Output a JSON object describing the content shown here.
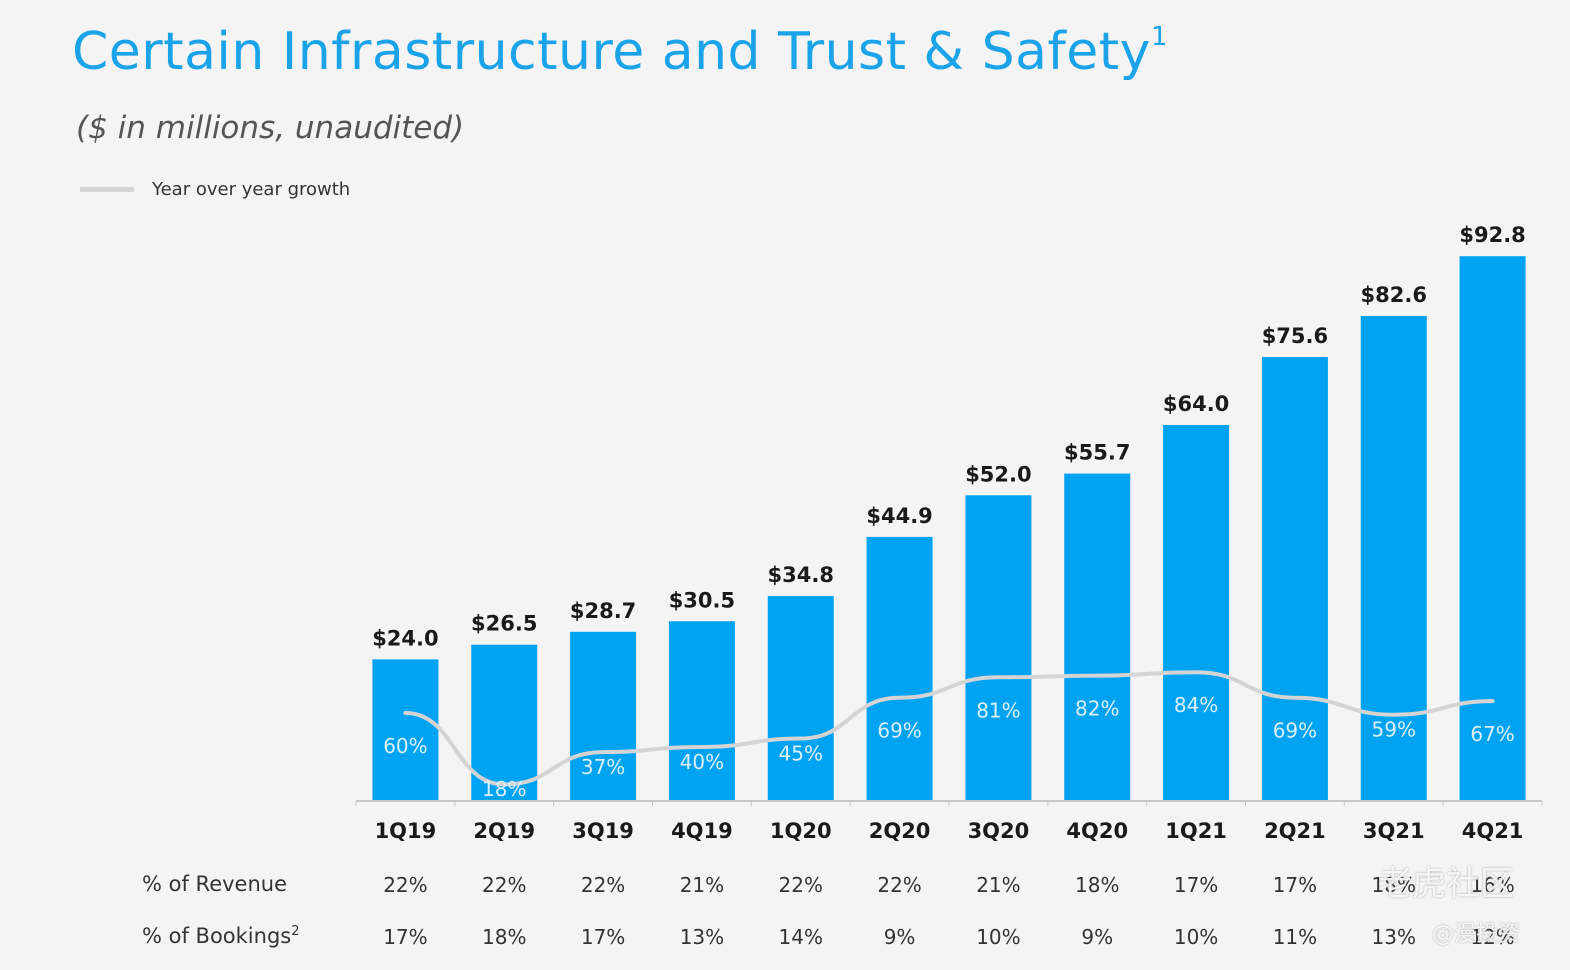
{
  "title": "Certain Infrastructure and Trust & Safety",
  "title_footnote": "1",
  "subtitle": "($ in millions,  unaudited)",
  "legend": {
    "label": "Year over year growth"
  },
  "colors": {
    "bar": "#00a2f2",
    "line": "#d4d4d4",
    "title": "#1aa3e8"
  },
  "chart_data": {
    "type": "bar",
    "categories": [
      "1Q19",
      "2Q19",
      "3Q19",
      "4Q19",
      "1Q20",
      "2Q20",
      "3Q20",
      "4Q20",
      "1Q21",
      "2Q21",
      "3Q21",
      "4Q21"
    ],
    "values": [
      24.0,
      26.5,
      28.7,
      30.5,
      34.8,
      44.9,
      52.0,
      55.7,
      64.0,
      75.6,
      82.6,
      92.8
    ],
    "value_labels": [
      "$24.0",
      "$26.5",
      "$28.7",
      "$30.5",
      "$34.8",
      "$44.9",
      "$52.0",
      "$55.7",
      "$64.0",
      "$75.6",
      "$82.6",
      "$92.8"
    ],
    "growth": [
      60,
      18,
      37,
      40,
      45,
      69,
      81,
      82,
      84,
      69,
      59,
      67
    ],
    "growth_labels": [
      "60%",
      "18%",
      "37%",
      "40%",
      "45%",
      "69%",
      "81%",
      "82%",
      "84%",
      "69%",
      "59%",
      "67%"
    ],
    "grid": false
  },
  "table": {
    "revenue_label": "% of Revenue",
    "revenue": [
      "22%",
      "22%",
      "22%",
      "21%",
      "22%",
      "22%",
      "21%",
      "18%",
      "17%",
      "17%",
      "18%",
      "16%"
    ],
    "bookings_label": "% of Bookings",
    "bookings_footnote": "2",
    "bookings": [
      "17%",
      "18%",
      "17%",
      "13%",
      "14%",
      "9%",
      "10%",
      "9%",
      "10%",
      "11%",
      "13%",
      "12%"
    ]
  },
  "watermark": {
    "main": "老虎社区",
    "handle": "@漫投资"
  }
}
